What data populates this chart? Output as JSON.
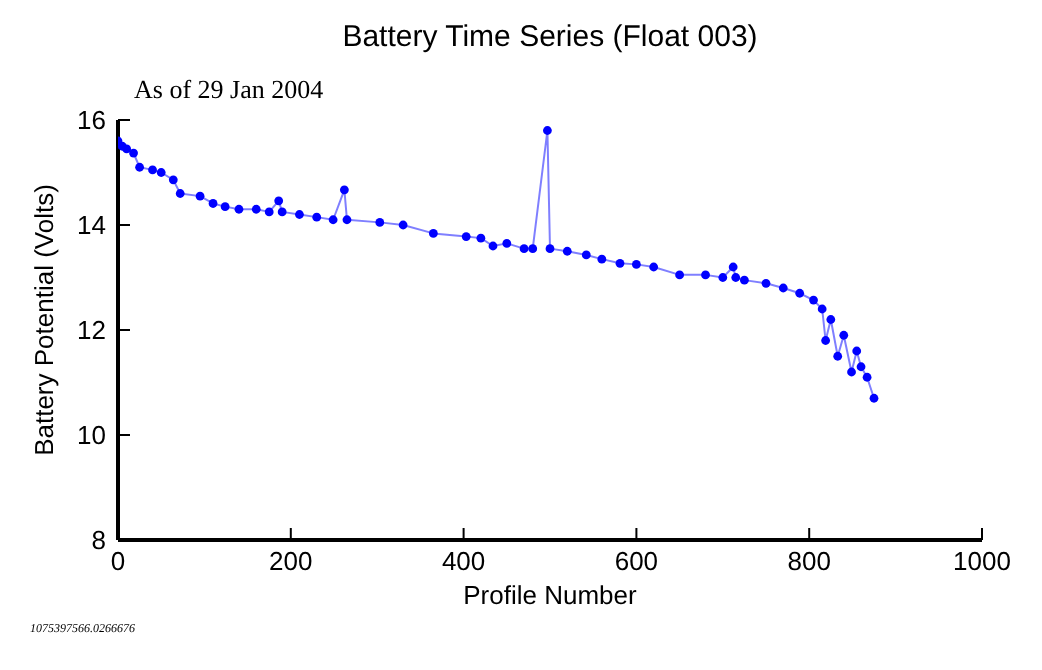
{
  "chart_data": {
    "type": "line",
    "title": "Battery Time Series (Float 003)",
    "subtitle": "As of 29 Jan 2004",
    "xlabel": "Profile Number",
    "ylabel": "Battery Potential (Volts)",
    "annotations": [
      "1075397566.0266676"
    ],
    "x": [
      0,
      5,
      10,
      18,
      25,
      40,
      50,
      64,
      72,
      95,
      110,
      124,
      140,
      160,
      175,
      186,
      190,
      210,
      230,
      249,
      262,
      265,
      303,
      330,
      365,
      403,
      420,
      434,
      450,
      470,
      480,
      497,
      500,
      520,
      542,
      560,
      581,
      600,
      620,
      650,
      680,
      700,
      712,
      715,
      725,
      750,
      770,
      789,
      805,
      815,
      819,
      825,
      833,
      840,
      849,
      855,
      860,
      867,
      875
    ],
    "series": [
      {
        "color": "#0000ff",
        "values": [
          15.6,
          15.5,
          15.45,
          15.37,
          15.1,
          15.05,
          15.0,
          14.86,
          14.6,
          14.55,
          14.41,
          14.35,
          14.3,
          14.3,
          14.25,
          14.46,
          14.25,
          14.2,
          14.15,
          14.1,
          14.67,
          14.1,
          14.05,
          14.0,
          13.84,
          13.78,
          13.75,
          13.6,
          13.65,
          13.55,
          13.55,
          15.8,
          13.55,
          13.5,
          13.43,
          13.35,
          13.27,
          13.25,
          13.2,
          13.05,
          13.05,
          13.0,
          13.2,
          13.0,
          12.95,
          12.89,
          12.8,
          12.7,
          12.57,
          12.4,
          11.8,
          12.2,
          11.5,
          11.9,
          11.2,
          11.6,
          11.3,
          11.1,
          10.7
        ]
      }
    ],
    "xlim": [
      0,
      1000
    ],
    "xticks": [
      0,
      200,
      400,
      600,
      800,
      1000
    ],
    "ylim": [
      8,
      16
    ],
    "yticks": [
      8,
      10,
      12,
      14,
      16
    ],
    "marker": "circle",
    "line_style": "solid"
  }
}
